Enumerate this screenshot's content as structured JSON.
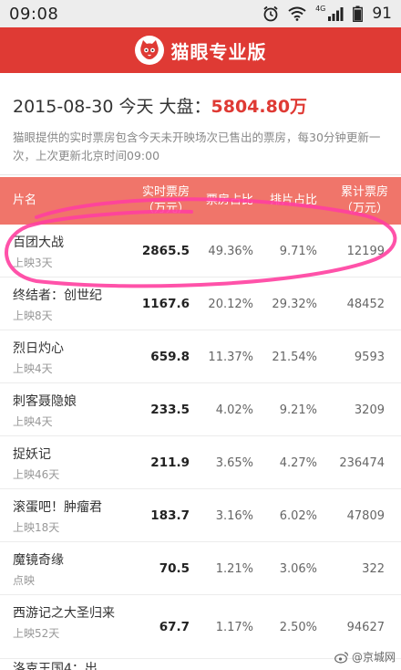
{
  "status_bar": {
    "time": "09:08",
    "battery": "91",
    "network": "4G"
  },
  "header": {
    "title": "猫眼专业版"
  },
  "summary": {
    "date_line": "2015-08-30 今天 大盘：",
    "total": "5804.80万",
    "desc": "猫眼提供的实时票房包含今天未开映场次已售出的票房，每30分钟更新一次，上次更新北京时间09:00"
  },
  "table": {
    "headers": {
      "name": "片名",
      "box_line1": "实时票房",
      "box_line2": "（万元）",
      "share": "票房占比",
      "seat": "排片占比",
      "cum_line1": "累计票房",
      "cum_line2": "（万元）"
    },
    "rows": [
      {
        "name": "百团大战",
        "sub": "上映3天",
        "box": "2865.5",
        "share": "49.36%",
        "seat": "9.71%",
        "cum": "12199"
      },
      {
        "name": "终结者：创世纪",
        "sub": "上映8天",
        "box": "1167.6",
        "share": "20.12%",
        "seat": "29.32%",
        "cum": "48452"
      },
      {
        "name": "烈日灼心",
        "sub": "上映4天",
        "box": "659.8",
        "share": "11.37%",
        "seat": "21.54%",
        "cum": "9593"
      },
      {
        "name": "刺客聂隐娘",
        "sub": "上映4天",
        "box": "233.5",
        "share": "4.02%",
        "seat": "9.21%",
        "cum": "3209"
      },
      {
        "name": "捉妖记",
        "sub": "上映46天",
        "box": "211.9",
        "share": "3.65%",
        "seat": "4.27%",
        "cum": "236474"
      },
      {
        "name": "滚蛋吧！肿瘤君",
        "sub": "上映18天",
        "box": "183.7",
        "share": "3.16%",
        "seat": "6.02%",
        "cum": "47809"
      },
      {
        "name": "魔镜奇缘",
        "sub": "点映",
        "box": "70.5",
        "share": "1.21%",
        "seat": "3.06%",
        "cum": "322"
      },
      {
        "name": "西游记之大圣归来",
        "sub": "上映52天",
        "box": "67.7",
        "share": "1.17%",
        "seat": "2.50%",
        "cum": "94627"
      }
    ],
    "partial_row_name": "洛克王国4：出"
  },
  "watermark": {
    "text": "@京城网"
  },
  "colors": {
    "brand": "#df3a34",
    "header_row": "#f0756a",
    "annotation": "#ff3fa0"
  }
}
